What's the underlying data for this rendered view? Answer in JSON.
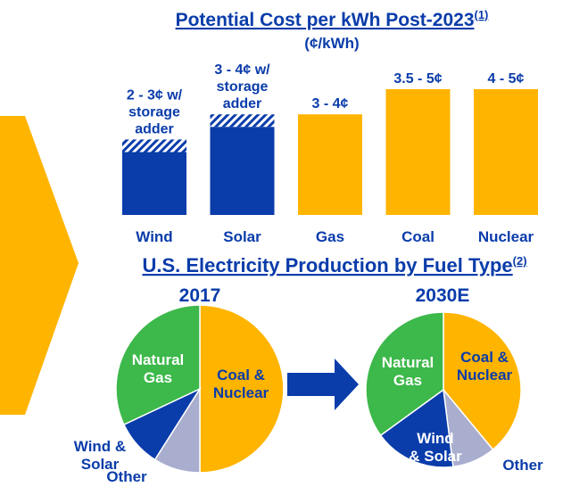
{
  "chart_data": [
    {
      "type": "bar",
      "title": "Potential Cost per kWh Post-2023",
      "title_superscript": "(1)",
      "subtitle": "(¢/kWh)",
      "unit": "¢/kWh",
      "ylim": [
        0,
        5.5
      ],
      "grid": false,
      "legend": "none",
      "categories": [
        "Wind",
        "Solar",
        "Gas",
        "Coal",
        "Nuclear"
      ],
      "base_values": [
        2.5,
        3.5,
        4,
        5,
        5
      ],
      "storage_adder_top": [
        3,
        4,
        null,
        null,
        null
      ],
      "labels": [
        [
          "2 - 3¢ w/",
          "storage",
          "adder"
        ],
        [
          "3 - 4¢ w/",
          "storage",
          "adder"
        ],
        [
          "3 - 4¢"
        ],
        [
          "3.5 - 5¢"
        ],
        [
          "4 - 5¢"
        ]
      ],
      "colors": [
        "#0a3caa",
        "#0a3caa",
        "#ffb400",
        "#ffb400",
        "#ffb400"
      ]
    },
    {
      "type": "pie",
      "title": "U.S. Electricity Production by Fuel Type",
      "title_superscript": "(2)",
      "legend": "none",
      "pies": [
        {
          "year": "2017",
          "slices": [
            {
              "label": "Coal & Nuclear",
              "lines": [
                "Coal &",
                "Nuclear"
              ],
              "value": 50,
              "color": "#ffb400"
            },
            {
              "label": "Other",
              "lines": [
                "Other"
              ],
              "value": 9,
              "color": "#a9adce"
            },
            {
              "label": "Wind & Solar",
              "lines": [
                "Wind &",
                "Solar"
              ],
              "value": 9,
              "color": "#0a3caa"
            },
            {
              "label": "Natural Gas",
              "lines": [
                "Natural",
                "Gas"
              ],
              "value": 32,
              "color": "#3db84a"
            }
          ]
        },
        {
          "year": "2030E",
          "slices": [
            {
              "label": "Coal & Nuclear",
              "lines": [
                "Coal &",
                "Nuclear"
              ],
              "value": 39,
              "color": "#ffb400"
            },
            {
              "label": "Other",
              "lines": [
                "Other"
              ],
              "value": 9,
              "color": "#a9adce"
            },
            {
              "label": "Wind & Solar",
              "lines": [
                "Wind",
                "& Solar"
              ],
              "value": 17,
              "color": "#0a3caa"
            },
            {
              "label": "Natural Gas",
              "lines": [
                "Natural",
                "Gas"
              ],
              "value": 35,
              "color": "#3db84a"
            }
          ]
        }
      ]
    }
  ]
}
